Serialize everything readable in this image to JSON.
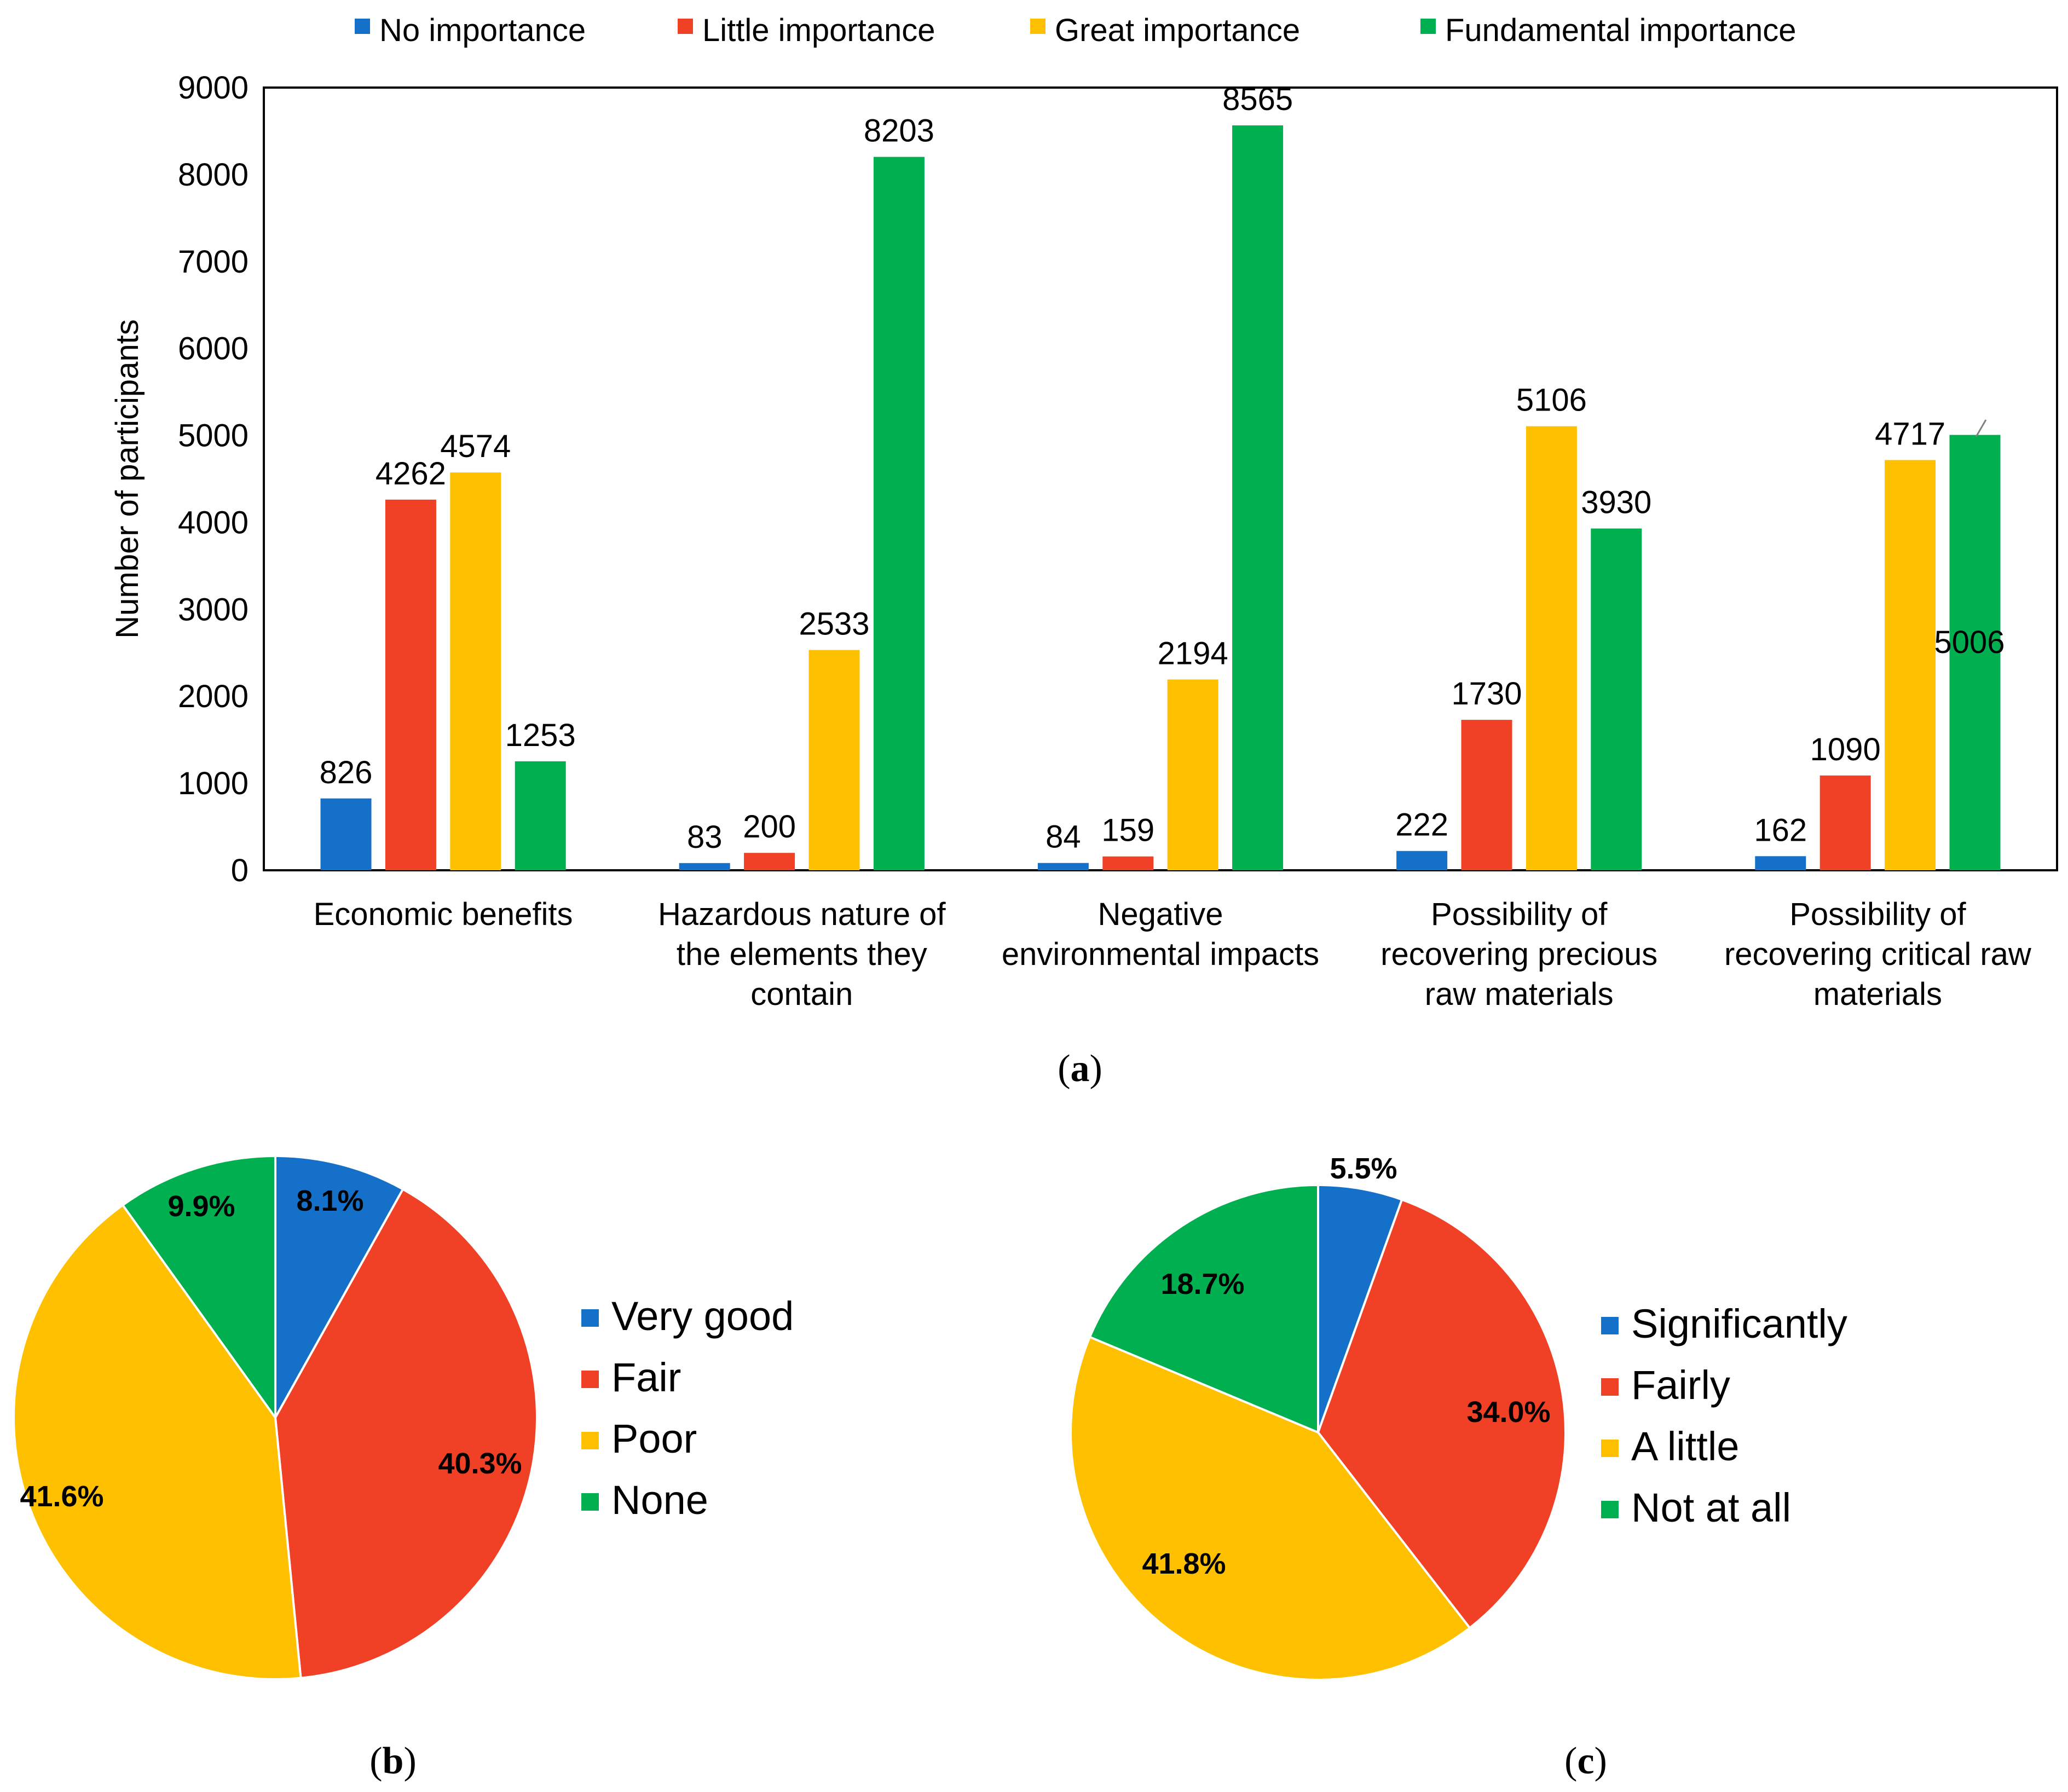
{
  "colors": {
    "blue": "#1570c9",
    "red": "#f04025",
    "yellow": "#ffc000",
    "green": "#00b050"
  },
  "chart_data": [
    {
      "id": "a",
      "type": "bar",
      "caption_letter": "a",
      "ylabel": "Number of participants",
      "ylim": [
        0,
        9000
      ],
      "yticks": [
        "0",
        "1000",
        "2000",
        "3000",
        "4000",
        "5000",
        "6000",
        "7000",
        "8000",
        "9000"
      ],
      "grid": false,
      "legend_position": "top",
      "categories": [
        [
          "Economic benefits"
        ],
        [
          "Hazardous nature of",
          "the elements they",
          "contain"
        ],
        [
          "Negative",
          "environmental impacts"
        ],
        [
          "Possibility of",
          "recovering precious",
          "raw materials"
        ],
        [
          "Possibility of",
          "recovering critical raw",
          "materials"
        ]
      ],
      "series": [
        {
          "name": "No importance",
          "color": "#1570c9",
          "values": [
            826,
            83,
            84,
            222,
            162
          ]
        },
        {
          "name": "Little importance",
          "color": "#f04025",
          "values": [
            4262,
            200,
            159,
            1730,
            1090
          ]
        },
        {
          "name": "Great importance",
          "color": "#ffc000",
          "values": [
            4574,
            2533,
            2194,
            5106,
            4717
          ]
        },
        {
          "name": "Fundamental importance",
          "color": "#00b050",
          "values": [
            1253,
            8203,
            8565,
            3930,
            5006
          ]
        }
      ]
    },
    {
      "id": "b",
      "type": "pie",
      "caption_letter": "b",
      "legend_position": "right",
      "slices": [
        {
          "label": "Very good",
          "value": 8.1,
          "text": "8.1%",
          "color": "#1570c9"
        },
        {
          "label": "Fair",
          "value": 40.3,
          "text": "40.3%",
          "color": "#f04025"
        },
        {
          "label": "Poor",
          "value": 41.6,
          "text": "41.6%",
          "color": "#ffc000"
        },
        {
          "label": "None",
          "value": 9.9,
          "text": "9.9%",
          "color": "#00b050"
        }
      ]
    },
    {
      "id": "c",
      "type": "pie",
      "caption_letter": "c",
      "legend_position": "right",
      "slices": [
        {
          "label": "Significantly",
          "value": 5.5,
          "text": "5.5%",
          "color": "#1570c9"
        },
        {
          "label": "Fairly",
          "value": 34.0,
          "text": "34.0%",
          "color": "#f04025"
        },
        {
          "label": "A little",
          "value": 41.8,
          "text": "41.8%",
          "color": "#ffc000"
        },
        {
          "label": "Not at all",
          "value": 18.7,
          "text": "18.7%",
          "color": "#00b050"
        }
      ]
    }
  ]
}
